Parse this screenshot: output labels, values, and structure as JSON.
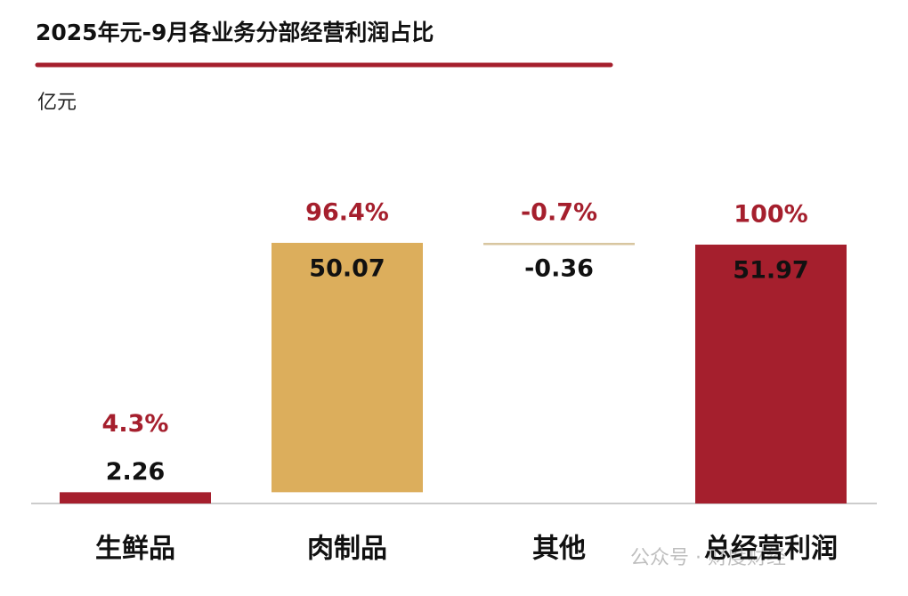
{
  "chart_data": {
    "type": "waterfall",
    "title": "2025年元-9月各业务分部经营利润占比",
    "unit": "亿元",
    "categories": [
      "生鲜品",
      "肉制品",
      "其他",
      "总经营利润"
    ],
    "values": [
      2.26,
      50.07,
      -0.36,
      51.97
    ],
    "is_total": [
      false,
      false,
      false,
      true
    ],
    "share_labels": [
      "4.3%",
      "96.4%",
      "-0.7%",
      "100%"
    ],
    "colors": [
      "#a51f2d",
      "#dcae5c",
      "#d8c6a0",
      "#a51f2d"
    ],
    "watermark": "公众号 · 财度财经"
  }
}
